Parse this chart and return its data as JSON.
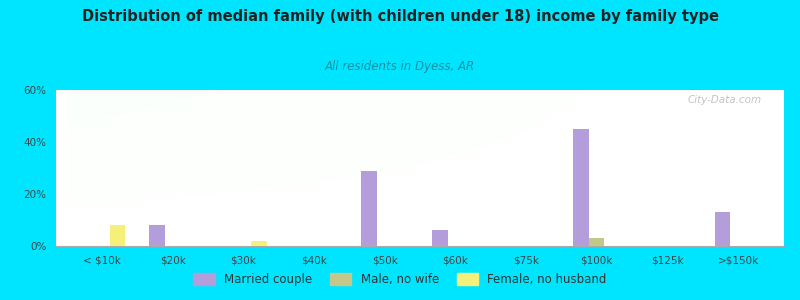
{
  "title": "Distribution of median family (with children under 18) income by family type",
  "subtitle": "All residents in Dyess, AR",
  "categories": [
    "< $10k",
    "$20k",
    "$30k",
    "$40k",
    "$50k",
    "$60k",
    "$75k",
    "$100k",
    "$125k",
    ">$150k"
  ],
  "married_couple": [
    0,
    8,
    0,
    0,
    29,
    6,
    0,
    45,
    0,
    13
  ],
  "male_no_wife": [
    0,
    0,
    0,
    0,
    0,
    0,
    0,
    3,
    0,
    0
  ],
  "female_no_husband": [
    8,
    0,
    2,
    0,
    0,
    0,
    0,
    0,
    0,
    0
  ],
  "married_color": "#b39ddb",
  "male_color": "#c5c68a",
  "female_color": "#f5f07a",
  "ylim": [
    0,
    60
  ],
  "yticks": [
    0,
    20,
    40,
    60
  ],
  "bar_width": 0.22,
  "background_outer": "#00e5ff",
  "watermark": "City-Data.com"
}
